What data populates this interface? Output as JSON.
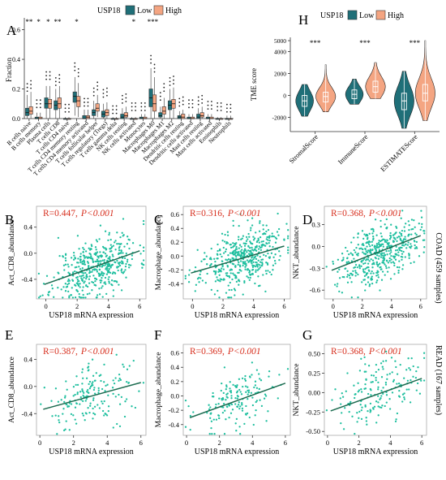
{
  "colors": {
    "low": "#1f6f78",
    "high": "#f4a582",
    "scatter_point": "#1fbf9f",
    "fit_line": "#1b6b4f",
    "annotation_red": "#d7301f",
    "axis": "#333333",
    "panel_border": "#aaaaaa"
  },
  "panelA": {
    "letter": "A",
    "legend_title": "USP18",
    "legend_low": "Low",
    "legend_high": "High",
    "ylabel": "Fraction",
    "yticks": [
      "0.0",
      "0.2",
      "0.4",
      "0.6"
    ],
    "ylim": [
      0,
      0.68
    ],
    "categories": [
      "B cells naive",
      "B cells memory",
      "Plasma cells",
      "T cells CD8",
      "T cells CD4 naive",
      "T cells CD4 memory resting",
      "T cells CD4 memory activated",
      "T cells follicular helper",
      "T cells regulatory (Tregs)",
      "T cells gamma delta",
      "NK cells resting",
      "NK cells activated",
      "Monocytes",
      "Macrophages M0",
      "Macrophages M1",
      "Macrophages M2",
      "Dendritic cells resting",
      "Dendritic cells activated",
      "Mast cells resting",
      "Mast cells activated",
      "Eosinophils",
      "Neutrophils"
    ],
    "signif": [
      "**",
      "*",
      "*",
      "**",
      "",
      "*",
      "",
      "",
      "",
      "",
      "",
      "*",
      "",
      "***",
      "",
      "",
      "",
      "",
      "",
      "",
      "",
      ""
    ],
    "low_box": [
      [
        0.02,
        0.04,
        0.07,
        0.0,
        0.16
      ],
      [
        0.0,
        0.0,
        0.01,
        0.0,
        0.04
      ],
      [
        0.07,
        0.1,
        0.14,
        0.0,
        0.22
      ],
      [
        0.06,
        0.09,
        0.12,
        0.0,
        0.2
      ],
      [
        0.0,
        0.0,
        0.0,
        0.0,
        0.01
      ],
      [
        0.11,
        0.15,
        0.18,
        0.02,
        0.28
      ],
      [
        0.0,
        0.0,
        0.02,
        0.0,
        0.06
      ],
      [
        0.02,
        0.04,
        0.06,
        0.0,
        0.12
      ],
      [
        0.01,
        0.03,
        0.05,
        0.0,
        0.1
      ],
      [
        0.0,
        0.0,
        0.0,
        0.0,
        0.01
      ],
      [
        0.0,
        0.01,
        0.03,
        0.0,
        0.07
      ],
      [
        0.0,
        0.0,
        0.0,
        0.0,
        0.01
      ],
      [
        0.0,
        0.0,
        0.01,
        0.0,
        0.03
      ],
      [
        0.08,
        0.14,
        0.2,
        0.0,
        0.34
      ],
      [
        0.01,
        0.02,
        0.04,
        0.0,
        0.08
      ],
      [
        0.06,
        0.09,
        0.12,
        0.0,
        0.2
      ],
      [
        0.0,
        0.01,
        0.02,
        0.0,
        0.05
      ],
      [
        0.0,
        0.0,
        0.01,
        0.0,
        0.03
      ],
      [
        0.0,
        0.01,
        0.03,
        0.0,
        0.07
      ],
      [
        0.0,
        0.0,
        0.01,
        0.0,
        0.03
      ],
      [
        0.0,
        0.0,
        0.0,
        0.0,
        0.01
      ],
      [
        0.0,
        0.0,
        0.0,
        0.0,
        0.02
      ]
    ],
    "high_box": [
      [
        0.03,
        0.05,
        0.08,
        0.0,
        0.18
      ],
      [
        0.0,
        0.0,
        0.01,
        0.0,
        0.04
      ],
      [
        0.07,
        0.1,
        0.13,
        0.0,
        0.22
      ],
      [
        0.07,
        0.1,
        0.14,
        0.0,
        0.22
      ],
      [
        0.0,
        0.0,
        0.0,
        0.0,
        0.01
      ],
      [
        0.08,
        0.12,
        0.15,
        0.01,
        0.24
      ],
      [
        0.0,
        0.01,
        0.02,
        0.0,
        0.06
      ],
      [
        0.05,
        0.07,
        0.1,
        0.01,
        0.16
      ],
      [
        0.02,
        0.04,
        0.06,
        0.0,
        0.11
      ],
      [
        0.0,
        0.0,
        0.0,
        0.0,
        0.01
      ],
      [
        0.01,
        0.02,
        0.04,
        0.0,
        0.08
      ],
      [
        0.0,
        0.0,
        0.0,
        0.0,
        0.01
      ],
      [
        0.0,
        0.0,
        0.01,
        0.0,
        0.03
      ],
      [
        0.05,
        0.1,
        0.16,
        0.0,
        0.28
      ],
      [
        0.03,
        0.05,
        0.08,
        0.0,
        0.14
      ],
      [
        0.07,
        0.1,
        0.13,
        0.0,
        0.21
      ],
      [
        0.0,
        0.01,
        0.03,
        0.0,
        0.06
      ],
      [
        0.0,
        0.0,
        0.01,
        0.0,
        0.03
      ],
      [
        0.01,
        0.02,
        0.04,
        0.0,
        0.08
      ],
      [
        0.0,
        0.0,
        0.01,
        0.0,
        0.03
      ],
      [
        0.0,
        0.0,
        0.0,
        0.0,
        0.01
      ],
      [
        0.0,
        0.0,
        0.0,
        0.0,
        0.02
      ]
    ]
  },
  "panelH": {
    "letter": "H",
    "legend_title": "USP18",
    "legend_low": "Low",
    "legend_high": "High",
    "ylabel": "TME score",
    "yticks": [
      "-2000",
      "0",
      "2000",
      "4000",
      "5000"
    ],
    "ytick_values": [
      -2000,
      0,
      2000,
      4000,
      5000
    ],
    "ylim": [
      -3300,
      5300
    ],
    "categories": [
      "StromalScore",
      "ImmuneScore",
      "ESTIMATEScore"
    ],
    "signif": [
      "***",
      "***",
      "***"
    ],
    "low": [
      {
        "min": -1900,
        "q1": -1000,
        "median": -500,
        "q3": 0,
        "max": 1000,
        "w": 0.8
      },
      {
        "min": -800,
        "q1": -300,
        "median": 100,
        "q3": 500,
        "max": 1500,
        "w": 0.8
      },
      {
        "min": -3000,
        "q1": -1300,
        "median": -500,
        "q3": 200,
        "max": 2200,
        "w": 0.9
      }
    ],
    "high": [
      {
        "min": -1500,
        "q1": -600,
        "median": -100,
        "q3": 300,
        "max": 2800,
        "w": 0.9
      },
      {
        "min": -300,
        "q1": 300,
        "median": 800,
        "q3": 1300,
        "max": 3000,
        "w": 0.9
      },
      {
        "min": -2300,
        "q1": -500,
        "median": 200,
        "q3": 1000,
        "max": 5000,
        "w": 0.9
      }
    ]
  },
  "scatters": [
    {
      "letter": "B",
      "r": "R=0.447,",
      "p": "P<0.001",
      "xlabel": "USP18 mRNA expression",
      "ylabel": "Act_CD8_abundance",
      "xlim": [
        -0.6,
        6.4
      ],
      "ylim": [
        -0.7,
        0.72
      ],
      "xticks": [
        0,
        2,
        4,
        6
      ],
      "yticks": [
        -0.4,
        0.0,
        0.4
      ],
      "ytick_labels": [
        "-0.4",
        "0.0",
        "0.4"
      ],
      "n": 459,
      "seed": 11,
      "slope": 0.0845,
      "intercept": -0.47,
      "sd": 0.22,
      "xmean": 3.2,
      "xsd": 1.35,
      "fit_x": [
        -0.1,
        6.0
      ]
    },
    {
      "letter": "C",
      "r": "R=0.316,",
      "p": "P<0.001",
      "xlabel": "USP18 mRNA expression",
      "ylabel": "Macrophage_abundance",
      "xlim": [
        -0.6,
        6.4
      ],
      "ylim": [
        -0.62,
        0.72
      ],
      "xticks": [
        0,
        2,
        4,
        6
      ],
      "yticks": [
        -0.4,
        -0.2,
        0.0,
        0.2,
        0.4,
        0.6
      ],
      "ytick_labels": [
        "-0.4",
        "-0.2",
        "0.0",
        "0.2",
        "0.4",
        "0.6"
      ],
      "n": 459,
      "seed": 23,
      "slope": 0.064,
      "intercept": -0.24,
      "sd": 0.21,
      "xmean": 3.2,
      "xsd": 1.35,
      "fit_x": [
        -0.1,
        6.0
      ]
    },
    {
      "letter": "D",
      "r": "R=0.368,",
      "p": "P<0.001",
      "xlabel": "USP18 mRNA expression",
      "ylabel": "NKT_abundance",
      "xlim": [
        -0.6,
        6.4
      ],
      "ylim": [
        -0.72,
        0.55
      ],
      "xticks": [
        0,
        2,
        4,
        6
      ],
      "yticks": [
        -0.6,
        -0.3,
        0.0,
        0.3
      ],
      "ytick_labels": [
        "-0.6",
        "-0.3",
        "0.0",
        "0.3"
      ],
      "n": 459,
      "seed": 37,
      "slope": 0.078,
      "intercept": -0.32,
      "sd": 0.19,
      "xmean": 3.2,
      "xsd": 1.35,
      "fit_x": [
        -0.1,
        6.0
      ]
    },
    {
      "letter": "E",
      "r": "R=0.387,",
      "p": "P<0.001",
      "xlabel": "USP18 mRNA expression",
      "ylabel": "Act_CD8_abundance",
      "xlim": [
        -0.2,
        6.3
      ],
      "ylim": [
        -0.72,
        0.62
      ],
      "xticks": [
        0,
        2,
        4,
        6
      ],
      "yticks": [
        -0.4,
        0.0,
        0.4
      ],
      "ytick_labels": [
        "-0.4",
        "0.0",
        "0.4"
      ],
      "n": 167,
      "seed": 41,
      "slope": 0.068,
      "intercept": -0.35,
      "sd": 0.22,
      "xmean": 3.1,
      "xsd": 1.3,
      "fit_x": [
        0.2,
        6.0
      ]
    },
    {
      "letter": "F",
      "r": "R=0.369,",
      "p": "P<0.001",
      "xlabel": "USP18 mRNA expression",
      "ylabel": "Macrophage_abundance",
      "xlim": [
        -0.2,
        6.3
      ],
      "ylim": [
        -0.55,
        0.72
      ],
      "xticks": [
        0,
        2,
        4,
        6
      ],
      "yticks": [
        -0.4,
        -0.2,
        0.0,
        0.2,
        0.4,
        0.6
      ],
      "ytick_labels": [
        "-0.4",
        "-0.2",
        "0.0",
        "0.2",
        "0.4",
        "0.6"
      ],
      "n": 167,
      "seed": 53,
      "slope": 0.083,
      "intercept": -0.32,
      "sd": 0.21,
      "xmean": 3.1,
      "xsd": 1.3,
      "fit_x": [
        0.2,
        6.0
      ]
    },
    {
      "letter": "G",
      "r": "R=0.368,",
      "p": "P<0.001",
      "xlabel": "USP18 mRNA expression",
      "ylabel": "NKT_abundance",
      "xlim": [
        -0.2,
        6.3
      ],
      "ylim": [
        -0.55,
        0.62
      ],
      "xticks": [
        0,
        2,
        4,
        6
      ],
      "yticks": [
        -0.5,
        -0.25,
        0.0,
        0.25,
        0.5
      ],
      "ytick_labels": [
        "-0.50",
        "-0.25",
        "0.00",
        "0.25",
        "0.50"
      ],
      "n": 167,
      "seed": 67,
      "slope": 0.072,
      "intercept": -0.25,
      "sd": 0.2,
      "xmean": 3.1,
      "xsd": 1.3,
      "fit_x": [
        0.2,
        6.0
      ]
    }
  ],
  "side_labels": {
    "coad": "COAD (459 samples)",
    "read": "READ (167 samples)"
  }
}
